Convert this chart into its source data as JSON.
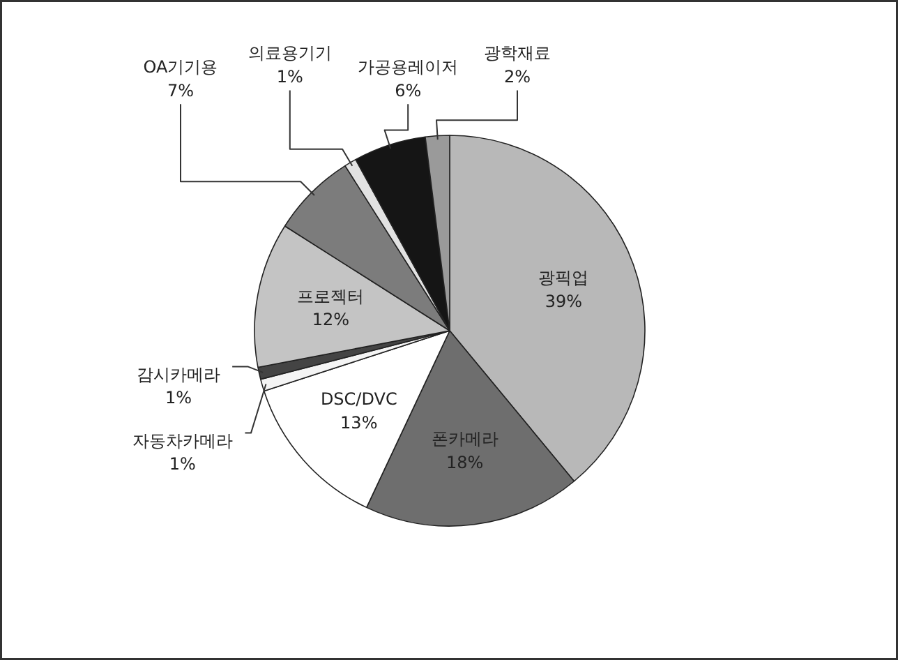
{
  "chart_data": {
    "type": "pie",
    "categories": [
      "광픽업",
      "폰카메라",
      "DSC/DVC",
      "자동차카메라",
      "감시카메라",
      "프로젝터",
      "OA기기용",
      "의료용기기",
      "가공용레이저",
      "광학재료"
    ],
    "values": [
      39,
      18,
      13,
      1,
      1,
      12,
      7,
      1,
      6,
      2
    ],
    "value_labels": [
      "39%",
      "18%",
      "13%",
      "1%",
      "1%",
      "12%",
      "7%",
      "1%",
      "6%",
      "2%"
    ],
    "colors": [
      "#b8b8b8",
      "#6e6e6e",
      "#ffffff",
      "#f4f4f4",
      "#444444",
      "#c4c4c4",
      "#7c7c7c",
      "#e2e2e2",
      "#151515",
      "#9a9a9a"
    ],
    "legend": false
  }
}
